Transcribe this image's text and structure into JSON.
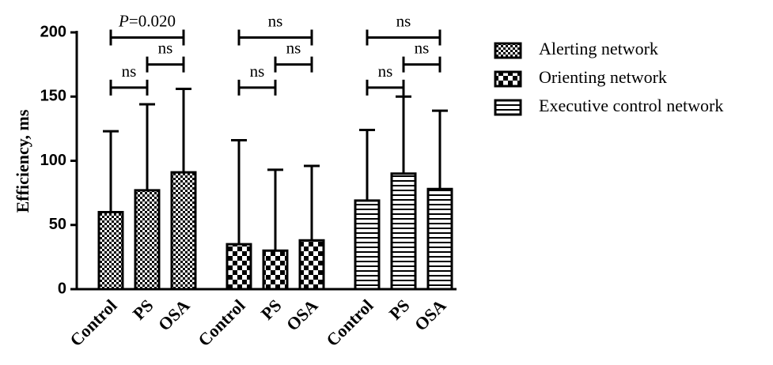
{
  "chart_data": {
    "type": "bar",
    "ylabel": "Efficiency, ms",
    "ylim": [
      0,
      200
    ],
    "yticks": [
      "0",
      "50",
      "100",
      "150",
      "200"
    ],
    "grid": false,
    "legend_position": "right",
    "series": [
      {
        "name": "Alerting network",
        "pattern": "checker",
        "categories": [
          "Control",
          "PS",
          "OSA"
        ],
        "values": [
          60,
          77,
          91
        ],
        "error_upper": [
          123,
          144,
          156
        ]
      },
      {
        "name": "Orienting network",
        "pattern": "large-checker",
        "categories": [
          "Control",
          "PS",
          "OSA"
        ],
        "values": [
          35,
          30,
          38
        ],
        "error_upper": [
          116,
          93,
          96
        ]
      },
      {
        "name": "Executive control network",
        "pattern": "horizontal-stripes",
        "categories": [
          "Control",
          "PS",
          "OSA"
        ],
        "values": [
          69,
          90,
          78
        ],
        "error_upper": [
          124,
          150,
          139
        ]
      }
    ],
    "significance": [
      [
        {
          "from": "Control",
          "to": "PS",
          "label": "ns",
          "y": 157
        },
        {
          "from": "PS",
          "to": "OSA",
          "label": "ns",
          "y": 175
        },
        {
          "from": "Control",
          "to": "OSA",
          "label_italic": "P",
          "label_rest": "=0.020",
          "y": 196
        }
      ],
      [
        {
          "from": "Control",
          "to": "PS",
          "label": "ns",
          "y": 157
        },
        {
          "from": "PS",
          "to": "OSA",
          "label": "ns",
          "y": 175
        },
        {
          "from": "Control",
          "to": "OSA",
          "label": "ns",
          "y": 196
        }
      ],
      [
        {
          "from": "Control",
          "to": "PS",
          "label": "ns",
          "y": 157
        },
        {
          "from": "PS",
          "to": "OSA",
          "label": "ns",
          "y": 175
        },
        {
          "from": "Control",
          "to": "OSA",
          "label": "ns",
          "y": 196
        }
      ]
    ],
    "colors": {
      "ink": "#000000",
      "background": "#ffffff"
    }
  }
}
